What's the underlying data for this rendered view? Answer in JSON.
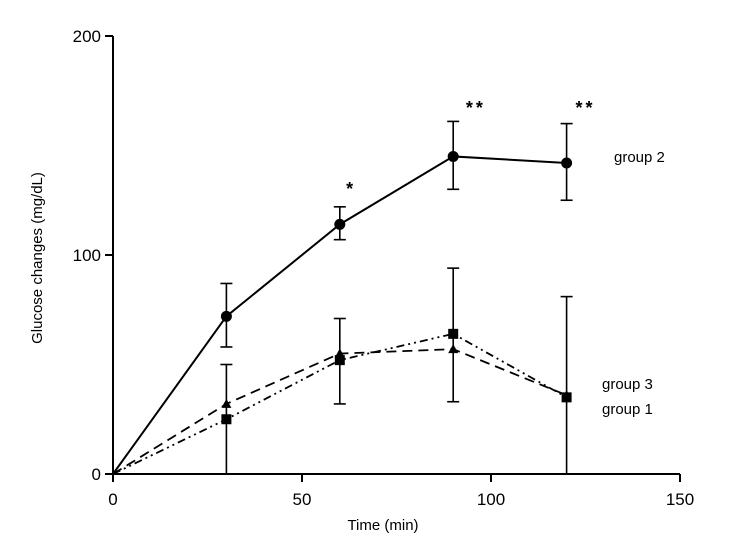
{
  "chart_data": {
    "type": "line",
    "xlabel": "Time (min)",
    "ylabel": "Glucose changes (mg/dL)",
    "xlim": [
      0,
      150
    ],
    "ylim": [
      0,
      200
    ],
    "xticks": [
      0,
      50,
      100,
      150
    ],
    "yticks": [
      0,
      100,
      200
    ],
    "grid": false,
    "series": [
      {
        "name": "group 2",
        "line_style": "solid",
        "marker": "circle",
        "x": [
          0,
          30,
          60,
          90,
          120
        ],
        "y": [
          0,
          72,
          114,
          145,
          142
        ],
        "err_low": [
          0,
          58,
          107,
          130,
          125
        ],
        "err_high": [
          0,
          87,
          122,
          161,
          160
        ]
      },
      {
        "name": "group 3",
        "line_style": "dashed",
        "marker": "triangle",
        "x": [
          0,
          30,
          60,
          90,
          120
        ],
        "y": [
          0,
          32,
          55,
          57,
          36
        ],
        "err_low": null,
        "err_high": null
      },
      {
        "name": "group 1",
        "line_style": "dashdotdot",
        "marker": "square",
        "x": [
          0,
          30,
          60,
          90,
          120
        ],
        "y": [
          0,
          25,
          52,
          64,
          35
        ],
        "err_low": [
          0,
          0,
          32,
          33,
          0
        ],
        "err_high": [
          0,
          50,
          71,
          94,
          81
        ]
      }
    ],
    "annotations": [
      {
        "text": "*",
        "x": 63,
        "y": 131
      },
      {
        "text": "**",
        "x": 96,
        "y": 168
      },
      {
        "text": "**",
        "x": 125,
        "y": 168
      }
    ]
  }
}
